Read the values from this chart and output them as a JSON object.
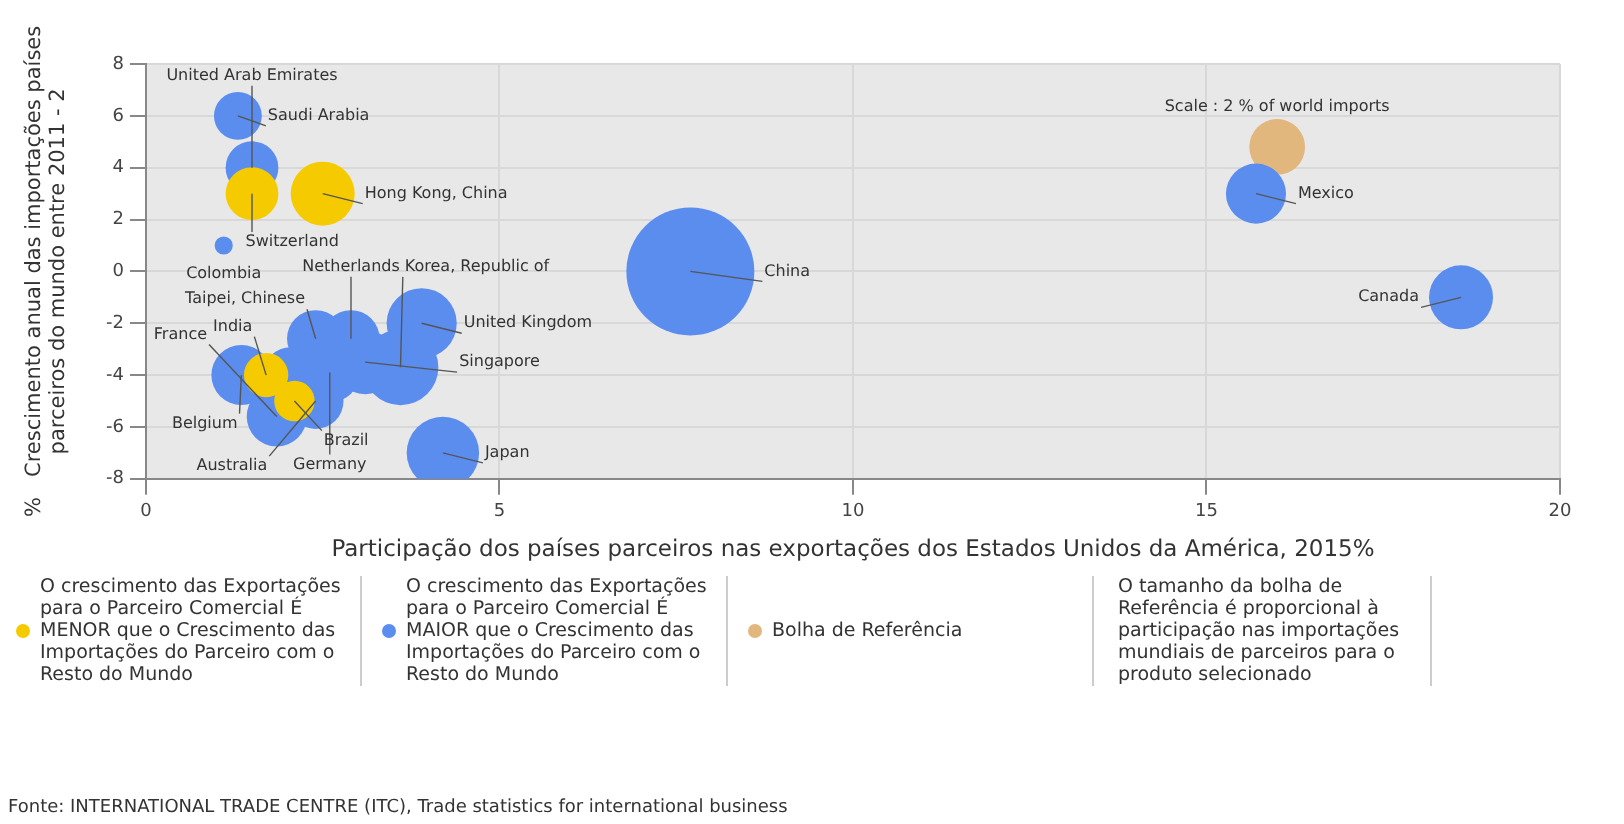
{
  "chart_data": {
    "type": "bubble",
    "xlabel": "Participação dos países parceiros nas exportações dos Estados Unidos da América, 2015%",
    "ylabel": "%   Crescimento anual das importações países parceiros do mundo entre 2011 - 2",
    "relative": false,
    "xlim": [
      0,
      20
    ],
    "xticks": [
      0,
      5,
      10,
      15,
      20
    ],
    "ylim": [
      -8,
      8
    ],
    "yticks": [
      -8,
      -6,
      -4,
      -2,
      0,
      2,
      4,
      6,
      8
    ],
    "grid": true,
    "legend": "bottom",
    "series": [
      {
        "name": "O crescimento das Exportações para o Parceiro Comercial É  MENOR que o Crescimento das Importações do Parceiro com o Resto do Mundo",
        "color": "#f5cb00",
        "x": [
          1.5,
          2.5,
          1.7,
          2.1
        ],
        "values": [
          3,
          3,
          -4,
          -5
        ],
        "sizes": [
          0.17,
          0.25,
          0.12,
          0.1
        ]
      },
      {
        "name": "O crescimento das Exportações para o Parceiro Comercial É MAIOR que o Crescimento das Importações do Parceiro com o Resto do Mundo",
        "color": "#5b8def",
        "x": [
          7.7,
          15.7,
          18.6,
          3.6,
          3.9,
          3.1,
          2.9,
          2.4,
          4.2,
          1.35,
          2.05,
          1.85,
          2.4,
          2.6,
          1.3,
          1.5,
          1.1
        ],
        "values": [
          0,
          3,
          -1,
          -3.7,
          -2,
          -3.5,
          -2.6,
          -2.6,
          -7,
          -4,
          -4,
          -5.6,
          -5,
          -3.9,
          6,
          4,
          1
        ],
        "sizes": [
          1,
          0.22,
          0.25,
          0.35,
          0.3,
          0.25,
          0.2,
          0.2,
          0.32,
          0.22,
          0.19,
          0.22,
          0.19,
          0.22,
          0.14,
          0.17,
          0.02
        ]
      },
      {
        "name": "Bolha de Referência",
        "color": "#e2b77e",
        "x": [
          16
        ],
        "values": [
          4.8
        ],
        "sizes": [
          0.19
        ]
      }
    ],
    "annotations": [
      "O tamanho da bolha de Referência  é proporcional à participação nas importações mundiais de parceiros para o produto selecionado",
      "Fonte: INTERNATIONAL TRADE CENTRE (ITC), Trade statistics for international business",
      {
        "text": "Scale : 2 % of world imports",
        "x": 16,
        "y": 4.8
      },
      {
        "text": "Saudi Arabia",
        "x": 1.3,
        "y": 6
      },
      {
        "text": "United Arab Emirates",
        "x": 1.5,
        "y": 4
      },
      {
        "text": "Switzerland",
        "x": 1.5,
        "y": 3
      },
      {
        "text": "Hong Kong, China",
        "x": 2.5,
        "y": 3
      },
      {
        "text": "Colombia",
        "x": 1.1,
        "y": 1
      },
      {
        "text": "China",
        "x": 7.7,
        "y": 0
      },
      {
        "text": "Mexico",
        "x": 15.7,
        "y": 3
      },
      {
        "text": "Canada",
        "x": 18.6,
        "y": -1
      },
      {
        "text": "United Kingdom",
        "x": 3.9,
        "y": -2
      },
      {
        "text": "Taipei, Chinese",
        "x": 2.4,
        "y": -2.6
      },
      {
        "text": "Netherlands",
        "x": 2.9,
        "y": -2.6
      },
      {
        "text": "India",
        "x": 1.7,
        "y": -4
      },
      {
        "text": "Singapore",
        "x": 3.1,
        "y": -3.5
      },
      {
        "text": "Korea, Republic of",
        "x": 3.6,
        "y": -3.7
      },
      {
        "text": "Belgium",
        "x": 1.35,
        "y": -4
      },
      {
        "text": "Germany",
        "x": 2.6,
        "y": -3.9
      },
      {
        "text": "Brazil",
        "x": 2.1,
        "y": -5
      },
      {
        "text": "Australia",
        "x": 2.4,
        "y": -5
      },
      {
        "text": "France",
        "x": 1.85,
        "y": -5.6
      },
      {
        "text": "Japan",
        "x": 4.2,
        "y": -7
      }
    ]
  }
}
